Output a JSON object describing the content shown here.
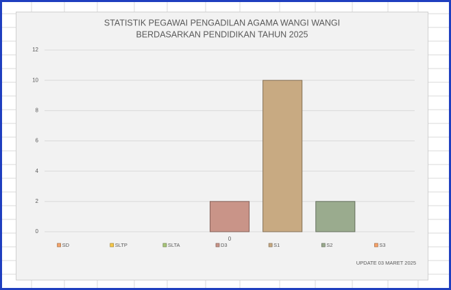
{
  "chart_data": {
    "type": "bar",
    "title": "STATISTIK PEGAWAI PENGADILAN AGAMA WANGI WANGI",
    "subtitle": "BERDASARKAN PENDIDIKAN TAHUN 2025",
    "categories": [
      "SD",
      "SLTP",
      "SLTA",
      "D3",
      "S1",
      "S2",
      "S3"
    ],
    "values": [
      0,
      0,
      0,
      2,
      10,
      2,
      0
    ],
    "colors": [
      "#f4a46a",
      "#f7c94a",
      "#a9c77a",
      "#c99488",
      "#c8aa82",
      "#9aab8e",
      "#f7a36a"
    ],
    "ylim": [
      0,
      12
    ],
    "yticks": [
      0,
      2,
      4,
      6,
      8,
      10,
      12
    ],
    "grid": true,
    "annotations": [
      "0",
      "UPDATE 03 MARET 2025"
    ]
  }
}
